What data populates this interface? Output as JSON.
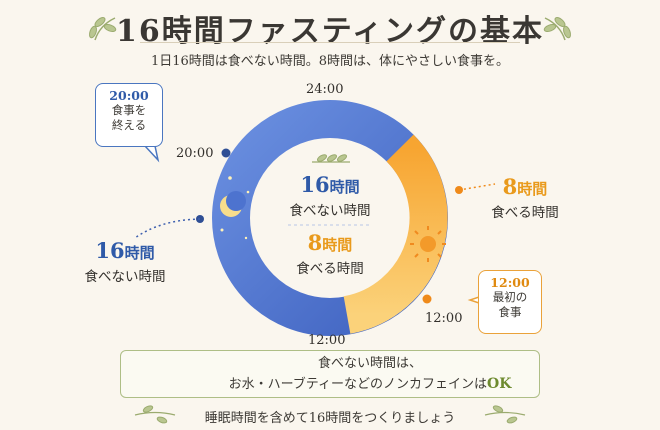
{
  "title": "16時間ファスティングの基本",
  "subtitle": "1日16時間は食べない時間。8時間は、体にやさしい食事を。",
  "clock_labels": {
    "top": "24:00",
    "bottom": "12:00",
    "left_marker": "20:00",
    "right_marker": "12:00"
  },
  "center": {
    "fast_hours": "16",
    "fast_unit": "時間",
    "fast_label": "食べない時間",
    "eat_hours": "8",
    "eat_unit": "時間",
    "eat_label": "食べる時間"
  },
  "left_side": {
    "hours": "16",
    "unit": "時間",
    "label": "食べない時間"
  },
  "right_side": {
    "hours": "8",
    "unit": "時間",
    "label": "食べる時間"
  },
  "bubble_left": {
    "time": "20:00",
    "line1": "食事を",
    "line2": "終える"
  },
  "bubble_right": {
    "time": "12:00",
    "line1": "最初の",
    "line2": "食事"
  },
  "note": {
    "line1": "食べない時間は、",
    "line2": "お水・ハーブティーなどのノンカフェインは",
    "ok": "OK"
  },
  "footer": "睡眠時間を含めて16時間をつくりましょう",
  "colors": {
    "fasting": "#4d73cf",
    "eating": "#f6b43c",
    "accent_leaf": "#9bab6f"
  },
  "icons": [
    "moon-icon",
    "sun-icon",
    "leaf-icon",
    "water-glass-icon"
  ]
}
